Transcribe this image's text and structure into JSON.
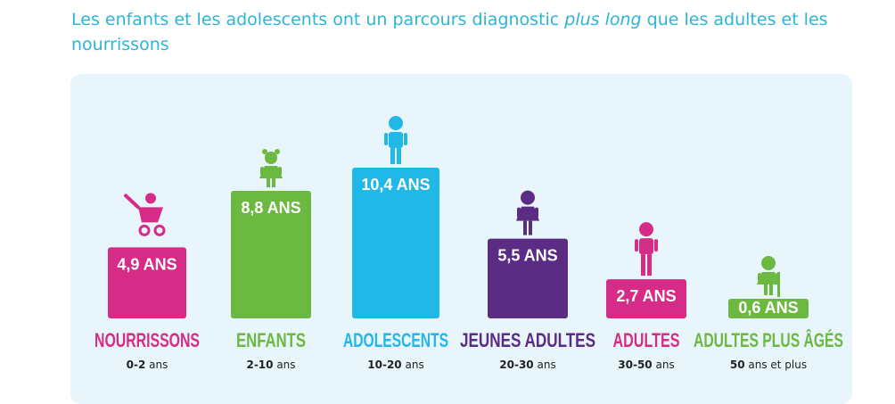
{
  "title": {
    "before": "Les enfants et les adolescents ont un parcours diagnostic ",
    "emphasis": "plus long",
    "after": " que les adultes et les nourrissons"
  },
  "chart_data": {
    "type": "bar",
    "title": "Les enfants et les adolescents ont un parcours diagnostic plus long que les adultes et les nourrissons",
    "categories": [
      "NOURRISSONS",
      "ENFANTS",
      "ADOLESCENTS",
      "JEUNES ADULTES",
      "ADULTES",
      "ADULTES PLUS ÂGÉS"
    ],
    "ranges": [
      {
        "num": "0-2",
        "unit": " ans"
      },
      {
        "num": "2-10",
        "unit": " ans"
      },
      {
        "num": "10-20",
        "unit": " ans"
      },
      {
        "num": "20-30",
        "unit": " ans"
      },
      {
        "num": "30-50",
        "unit": " ans"
      },
      {
        "num": "50",
        "unit": " ans et plus"
      }
    ],
    "values": [
      4.9,
      8.8,
      10.4,
      5.5,
      2.7,
      0.6
    ],
    "value_labels": [
      "4,9 ANS",
      "8,8 ANS",
      "10,4 ANS",
      "5,5 ANS",
      "2,7 ANS",
      "0,6 ANS"
    ],
    "colors": [
      "#d62c87",
      "#6cb942",
      "#21b7e7",
      "#5b2c83",
      "#d62c87",
      "#6cb942"
    ],
    "icons": [
      "stroller-icon",
      "child-icon",
      "teen-icon",
      "young-adult-woman-icon",
      "adult-man-icon",
      "older-woman-icon"
    ],
    "ylim": [
      0,
      10.4
    ],
    "grid": false,
    "legend": "none"
  }
}
